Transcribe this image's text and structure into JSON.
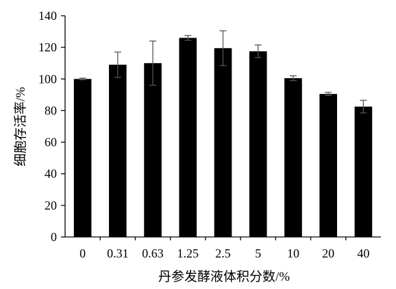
{
  "chart_data": {
    "type": "bar",
    "title": "",
    "xlabel": "丹参发酵液体积分数/%",
    "ylabel": "细胞存活率/%",
    "categories": [
      "0",
      "0.31",
      "0.63",
      "1.25",
      "2.5",
      "5",
      "10",
      "20",
      "40"
    ],
    "values": [
      100,
      109,
      110,
      126,
      119.5,
      117.5,
      100.5,
      90.5,
      82.5
    ],
    "errors": [
      0.5,
      8,
      14,
      1.5,
      11,
      4,
      1.5,
      1,
      4
    ],
    "ylim": [
      0,
      140
    ],
    "yticks": [
      0,
      20,
      40,
      60,
      80,
      100,
      120,
      140
    ],
    "grid": false,
    "bar_color": "#000000"
  }
}
